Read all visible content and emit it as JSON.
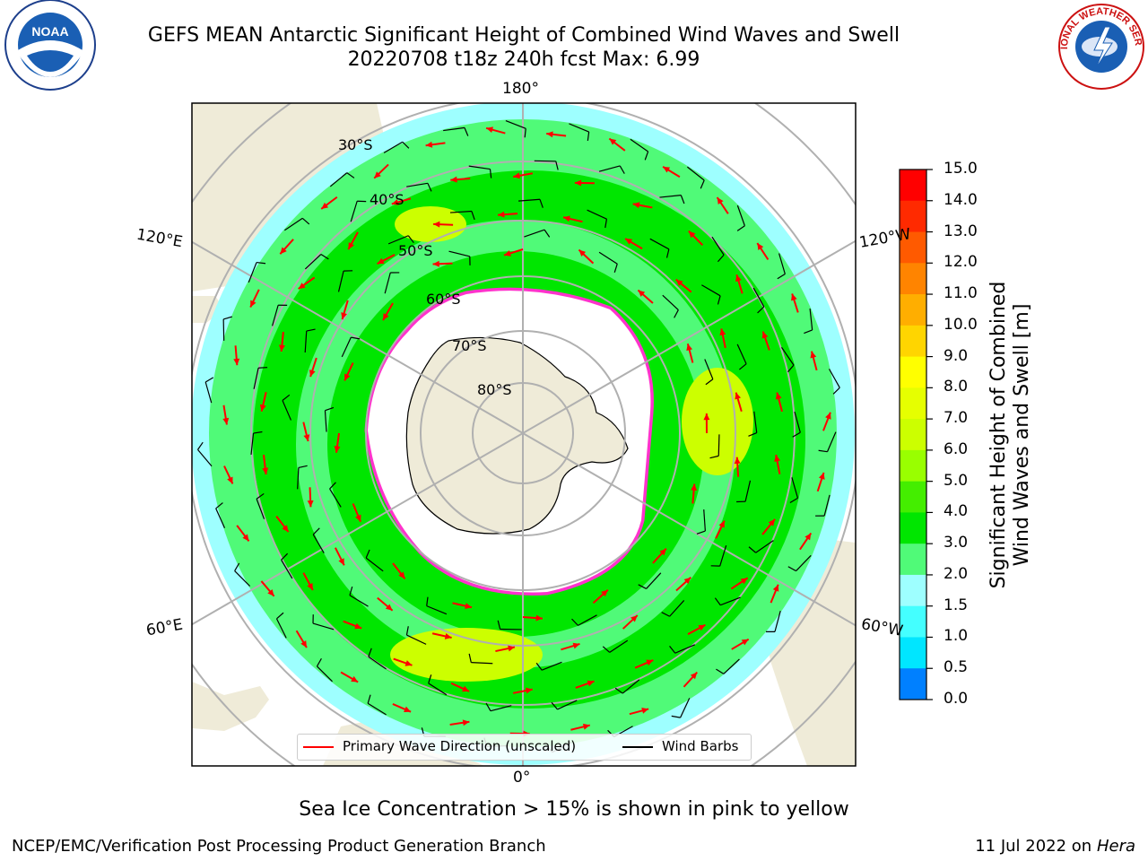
{
  "header": {
    "title_line1": "GEFS MEAN Antarctic Significant Height of Combined Wind Waves and Swell",
    "title_line2": "20220708 t18z 240h fcst   Max: 6.99"
  },
  "logos": [
    {
      "name": "noaa-logo",
      "text": "NOAA"
    },
    {
      "name": "nws-logo",
      "text": "NATIONAL WEATHER SERVICE"
    }
  ],
  "map": {
    "projection": "south-polar-stereographic",
    "longitude_labels": {
      "top": "180°",
      "bottom": "0°",
      "upper_left": "120°E",
      "upper_right": "120°W",
      "lower_left": "60°E",
      "lower_right": "60°W"
    },
    "latitude_labels": [
      "30°S",
      "40°S",
      "50°S",
      "60°S",
      "70°S",
      "80°S"
    ],
    "colors": {
      "land": "#efebd8",
      "ocean_low": "#9effff",
      "ocean_mid": "#50fa78",
      "ocean_high": "#00e600",
      "swell_peak": "#ccff00",
      "ice": "#ffffff",
      "ice_edge": "#ff33cc",
      "grid": "#b0b0b0"
    }
  },
  "legend": {
    "items": [
      {
        "label": "Primary Wave Direction (unscaled)",
        "color": "#ff0000"
      },
      {
        "label": "Wind Barbs",
        "color": "#000000"
      }
    ]
  },
  "colorbar": {
    "label_line1": "Significant Height of Combined",
    "label_line2": "Wind Waves and Swell [m]",
    "ticks": [
      "15.0",
      "14.0",
      "13.0",
      "12.0",
      "11.0",
      "10.0",
      "9.0",
      "8.0",
      "7.0",
      "6.0",
      "5.0",
      "4.0",
      "3.0",
      "2.0",
      "1.5",
      "1.0",
      "0.5",
      "0.0"
    ],
    "bands": [
      "#ff0000",
      "#ff2a00",
      "#ff5a00",
      "#ff8400",
      "#ffae00",
      "#ffd500",
      "#ffff00",
      "#e6ff00",
      "#ccff00",
      "#99ff00",
      "#44ee00",
      "#00e600",
      "#50fa78",
      "#9effff",
      "#44ffff",
      "#00e6ff",
      "#0080ff",
      "#0000ff"
    ]
  },
  "footer": {
    "note": "Sea Ice Concentration > 15% is shown in pink to yellow",
    "credit": "NCEP/EMC/Verification Post Processing Product Generation Branch",
    "date_prefix": "11 Jul 2022 on",
    "machine": "Hera"
  }
}
